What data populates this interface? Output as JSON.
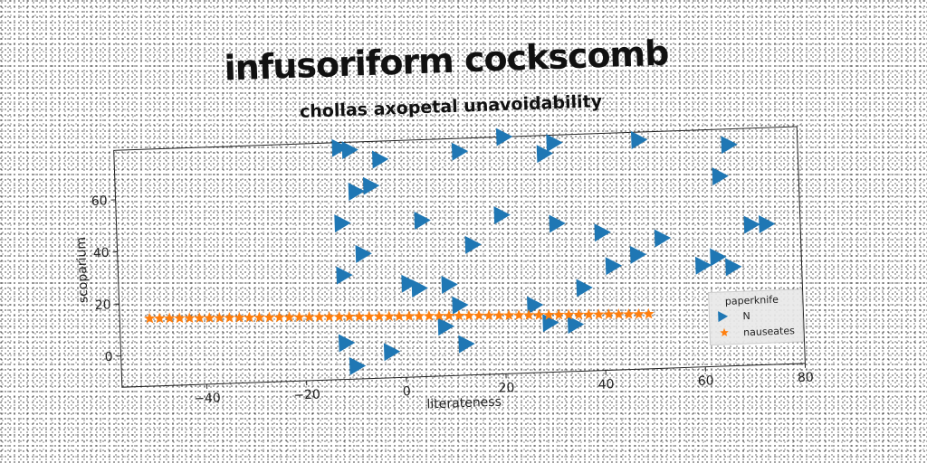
{
  "chart_data": {
    "type": "scatter",
    "title": "infusoriform cockscomb",
    "subtitle": "chollas axopetal unavoidability",
    "xlabel": "literateness",
    "ylabel": "scoparium",
    "xlim": [
      -57,
      80
    ],
    "ylim": [
      -12,
      79
    ],
    "xticks": [
      -40,
      -20,
      0,
      20,
      40,
      60,
      80
    ],
    "yticks": [
      0,
      20,
      40,
      60
    ],
    "grid": false,
    "legend": {
      "title": "paperknife",
      "placement": "bottom-right"
    },
    "series": [
      {
        "name": "N",
        "marker": "triangle-right",
        "color": "#1f77b4",
        "points": [
          [
            -12,
            77
          ],
          [
            -10,
            76
          ],
          [
            -4,
            72
          ],
          [
            12,
            74
          ],
          [
            21,
            79
          ],
          [
            31,
            76
          ],
          [
            29,
            72
          ],
          [
            48,
            76
          ],
          [
            66,
            73
          ],
          [
            -9,
            60
          ],
          [
            -6,
            62
          ],
          [
            64,
            61
          ],
          [
            -12,
            48
          ],
          [
            4,
            48
          ],
          [
            20,
            49
          ],
          [
            31,
            45
          ],
          [
            40,
            41
          ],
          [
            70,
            42
          ],
          [
            73,
            42
          ],
          [
            -8,
            36
          ],
          [
            14,
            38
          ],
          [
            52,
            38
          ],
          [
            47,
            32
          ],
          [
            42,
            28
          ],
          [
            60,
            27
          ],
          [
            63,
            30
          ],
          [
            66,
            26
          ],
          [
            -12,
            28
          ],
          [
            1,
            24
          ],
          [
            3,
            22
          ],
          [
            9,
            23
          ],
          [
            36,
            20
          ],
          [
            11,
            15
          ],
          [
            26,
            14
          ],
          [
            8,
            7
          ],
          [
            29,
            7
          ],
          [
            34,
            6
          ],
          [
            -12,
            2
          ],
          [
            -3,
            -2
          ],
          [
            12,
            0
          ],
          [
            -10,
            -7
          ]
        ]
      },
      {
        "name": "nauseates",
        "marker": "star",
        "color": "#ff7f0e",
        "x": [
          -51,
          -49,
          -47,
          -45,
          -43,
          -41,
          -39,
          -37,
          -35,
          -33,
          -31,
          -29,
          -27,
          -25,
          -23,
          -21,
          -19,
          -17,
          -15,
          -13,
          -11,
          -9,
          -7,
          -5,
          -3,
          -1,
          1,
          3,
          5,
          7,
          9,
          11,
          13,
          15,
          17,
          19,
          21,
          23,
          25,
          27,
          29,
          31,
          33,
          35,
          37,
          39,
          41,
          43,
          45,
          47,
          49
        ],
        "y": [
          14,
          13.9,
          13.8,
          13.7,
          13.6,
          13.5,
          13.4,
          13.3,
          13.2,
          13.1,
          13,
          12.9,
          12.8,
          12.7,
          12.6,
          12.5,
          12.4,
          12.3,
          12.2,
          12.1,
          12,
          11.9,
          11.8,
          11.7,
          11.6,
          11.5,
          11.4,
          11.3,
          11.2,
          11.1,
          11,
          10.9,
          10.8,
          10.7,
          10.6,
          10.5,
          10.4,
          10.3,
          10.2,
          10.1,
          10,
          9.9,
          9.8,
          9.7,
          9.6,
          9.5,
          9.4,
          9.3,
          9.2,
          9.1,
          9
        ]
      }
    ]
  }
}
